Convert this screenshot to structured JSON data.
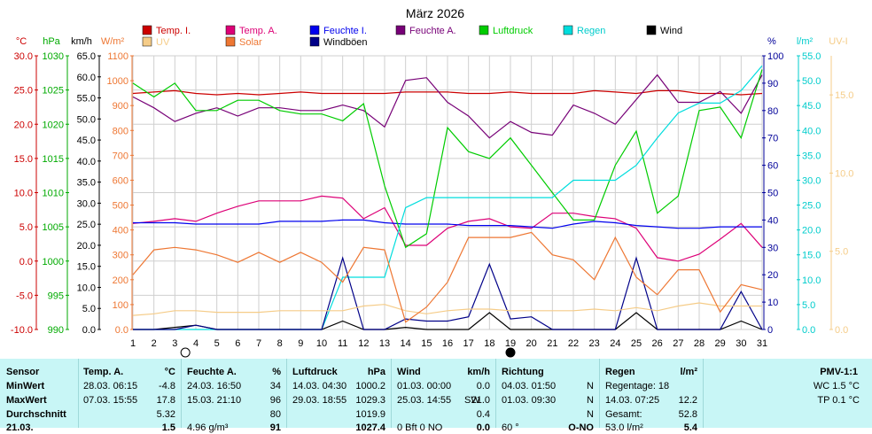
{
  "chart_data": {
    "type": "line",
    "title": "März 2026",
    "x": [
      1,
      2,
      3,
      4,
      5,
      6,
      7,
      8,
      9,
      10,
      11,
      12,
      13,
      14,
      15,
      16,
      17,
      18,
      19,
      20,
      21,
      22,
      23,
      24,
      25,
      26,
      27,
      28,
      29,
      30,
      31
    ],
    "xlim": [
      1,
      31
    ],
    "markers": [
      {
        "x": 3.5,
        "symbol": "full-moon"
      },
      {
        "x": 19,
        "symbol": "new-moon"
      }
    ],
    "axes": [
      {
        "id": "temp",
        "label": "°C",
        "color": "#cc0000",
        "ylim": [
          -10,
          30
        ],
        "ticks": [
          "-10.0",
          "-5.0",
          "0.0",
          "5.0",
          "10.0",
          "15.0",
          "20.0",
          "25.0",
          "30.0"
        ]
      },
      {
        "id": "press",
        "label": "hPa",
        "color": "#00aa00",
        "ylim": [
          990,
          1030
        ],
        "ticks": [
          "990",
          "995",
          "1000",
          "1005",
          "1010",
          "1015",
          "1020",
          "1025",
          "1030"
        ]
      },
      {
        "id": "wind",
        "label": "km/h",
        "color": "#000000",
        "ylim": [
          0,
          65
        ],
        "ticks": [
          "0.0",
          "5.0",
          "10.0",
          "15.0",
          "20.0",
          "25.0",
          "30.0",
          "35.0",
          "40.0",
          "45.0",
          "50.0",
          "55.0",
          "60.0",
          "65.0"
        ]
      },
      {
        "id": "solar",
        "label": "W/m²",
        "color": "#ee7733",
        "ylim": [
          0,
          1100
        ],
        "ticks": [
          "0.0",
          "100",
          "200",
          "300",
          "400",
          "500",
          "600",
          "700",
          "800",
          "900",
          "1000",
          "1100"
        ]
      },
      {
        "id": "hum",
        "label": "%",
        "color": "#000099",
        "ylim": [
          0,
          100
        ],
        "ticks": [
          "0",
          "10",
          "20",
          "30",
          "40",
          "50",
          "60",
          "70",
          "80",
          "90",
          "100"
        ]
      },
      {
        "id": "rain",
        "label": "l/m²",
        "color": "#00cccc",
        "ylim": [
          0,
          55
        ],
        "ticks": [
          "0.0",
          "5.0",
          "10.0",
          "15.0",
          "20.0",
          "25.0",
          "30.0",
          "35.0",
          "40.0",
          "45.0",
          "50.0",
          "55.0"
        ]
      },
      {
        "id": "uv",
        "label": "UV-I",
        "color": "#f5cc88",
        "ylim": [
          0,
          17.5
        ],
        "ticks": [
          "0.0",
          "5.0",
          "10.0",
          "15.0"
        ]
      }
    ],
    "series": [
      {
        "name": "Temp. I.",
        "color": "#cc0000",
        "axis": "temp",
        "values": [
          24.5,
          24.7,
          24.9,
          24.5,
          24.3,
          24.5,
          24.3,
          24.5,
          24.7,
          24.5,
          24.5,
          24.5,
          24.5,
          24.7,
          24.7,
          24.7,
          24.5,
          24.5,
          24.7,
          24.5,
          24.5,
          24.5,
          24.9,
          24.7,
          24.5,
          24.9,
          24.9,
          24.5,
          24.5,
          24.3,
          24.5
        ]
      },
      {
        "name": "Temp. A.",
        "color": "#dd0077",
        "axis": "temp",
        "values": [
          5.5,
          5.8,
          6.2,
          5.8,
          7.0,
          8.0,
          8.8,
          8.8,
          8.8,
          9.5,
          9.2,
          6.2,
          7.8,
          2.3,
          2.3,
          4.8,
          5.8,
          6.2,
          5.0,
          4.8,
          7.0,
          7.0,
          6.5,
          6.2,
          4.8,
          0.5,
          0.0,
          1.0,
          3.2,
          5.5,
          2.0
        ]
      },
      {
        "name": "Feuchte I.",
        "color": "#0000ee",
        "axis": "hum",
        "values": [
          39,
          39,
          39,
          38.5,
          38.5,
          38.5,
          38.5,
          39.5,
          39.5,
          39.5,
          40,
          40,
          39,
          38.5,
          38.5,
          38.5,
          38,
          38,
          38,
          37.5,
          37,
          38.5,
          39.5,
          39,
          38,
          37.5,
          37,
          37,
          37.5,
          37.5,
          37.5
        ]
      },
      {
        "name": "Feuchte A.",
        "color": "#770077",
        "axis": "hum",
        "values": [
          85,
          81,
          76,
          79,
          81,
          78,
          81,
          81,
          80,
          80,
          82,
          80,
          74,
          91,
          92,
          83,
          78,
          70,
          76,
          72,
          71,
          82,
          79,
          75,
          84,
          93,
          83,
          83,
          87,
          79,
          93
        ]
      },
      {
        "name": "Luftdruck",
        "color": "#00cc00",
        "axis": "press",
        "values": [
          1026,
          1024,
          1026,
          1022,
          1022,
          1023.5,
          1023.5,
          1022,
          1021.5,
          1021.5,
          1020.5,
          1023,
          1011,
          1002,
          1004,
          1019.5,
          1016,
          1015,
          1018,
          1014,
          1010,
          1006,
          1006,
          1014,
          1019,
          1007,
          1009.5,
          1022,
          1022.5,
          1018,
          1028
        ]
      },
      {
        "name": "Regen",
        "color": "#00dddd",
        "axis": "rain",
        "values": [
          0,
          0,
          0,
          0,
          0,
          0,
          0,
          0,
          0,
          0,
          10.5,
          10.5,
          10.5,
          24.5,
          26.5,
          26.5,
          26.5,
          26.5,
          26.5,
          26.5,
          26.5,
          30,
          30,
          30,
          33,
          38.5,
          43.5,
          45.5,
          45.5,
          48,
          53
        ]
      },
      {
        "name": "Wind",
        "color": "#000000",
        "axis": "wind",
        "values": [
          0,
          0,
          0.5,
          1,
          0,
          0,
          0,
          0,
          0,
          0,
          2,
          0,
          0,
          0.5,
          0,
          0,
          0,
          4,
          0,
          0,
          0,
          0,
          0,
          0,
          4,
          0,
          0,
          0,
          0,
          2,
          0
        ]
      },
      {
        "name": "Windböen",
        "color": "#000088",
        "axis": "wind",
        "values": [
          0,
          0,
          0,
          1,
          0,
          0,
          0,
          0,
          0,
          0,
          17,
          0,
          0,
          2.5,
          2,
          2,
          3,
          15.5,
          2.5,
          3,
          0,
          0,
          0,
          0,
          17,
          0,
          0,
          0,
          0,
          9,
          0
        ]
      },
      {
        "name": "UV",
        "color": "#f5cc88",
        "axis": "uv",
        "values": [
          0.9,
          1.0,
          1.2,
          1.2,
          1.1,
          1.1,
          1.1,
          1.2,
          1.2,
          1.2,
          1.2,
          1.5,
          1.6,
          1.2,
          1.0,
          1.2,
          1.3,
          1.3,
          1.2,
          1.2,
          1.2,
          1.2,
          1.3,
          1.2,
          1.4,
          1.2,
          1.5,
          1.7,
          1.5,
          1.5,
          1.5
        ]
      },
      {
        "name": "Solar",
        "color": "#ee7733",
        "axis": "solar",
        "values": [
          220,
          320,
          330,
          320,
          300,
          270,
          310,
          270,
          310,
          270,
          190,
          330,
          320,
          30,
          90,
          190,
          370,
          370,
          370,
          390,
          300,
          280,
          200,
          370,
          210,
          140,
          240,
          240,
          70,
          180,
          160
        ]
      }
    ],
    "legend": [
      {
        "name": "Temp. I.",
        "color": "#cc0000",
        "text_color": "#cc0000"
      },
      {
        "name": "Temp. A.",
        "color": "#dd0077",
        "text_color": "#dd0077"
      },
      {
        "name": "Feuchte I.",
        "color": "#0000ee",
        "text_color": "#0000ee"
      },
      {
        "name": "Feuchte A.",
        "color": "#770077",
        "text_color": "#770077"
      },
      {
        "name": "Luftdruck",
        "color": "#00cc00",
        "text_color": "#00cc00"
      },
      {
        "name": "Regen",
        "color": "#00dddd",
        "text_color": "#00cccc"
      },
      {
        "name": "Wind",
        "color": "#000000",
        "text_color": "#000000"
      },
      {
        "name": "UV",
        "color": "#f5cc88",
        "text_color": "#f5cc88"
      },
      {
        "name": "Solar",
        "color": "#ee7733",
        "text_color": "#ee7733"
      },
      {
        "name": "Windböen",
        "color": "#000088",
        "text_color": "#000000"
      }
    ],
    "grid": true,
    "legend_placement": "top"
  },
  "stats": {
    "sensor": {
      "header": "Sensor",
      "rows": [
        "MinWert",
        "MaxWert",
        "Durchschnitt",
        "21.03."
      ]
    },
    "temp": {
      "header": "Temp. A.",
      "unit": "°C",
      "rows": [
        [
          "28.03.  06:15",
          "-4.8"
        ],
        [
          "07.03.  15:55",
          "17.8"
        ],
        [
          "",
          "5.32"
        ],
        [
          "",
          "1.5"
        ]
      ]
    },
    "hum": {
      "header": "Feuchte A.",
      "unit": "%",
      "rows": [
        [
          "24.03.  16:50",
          "34"
        ],
        [
          "15.03.  21:10",
          "96"
        ],
        [
          "",
          "80"
        ],
        [
          "4.96 g/m³",
          "91"
        ]
      ]
    },
    "press": {
      "header": "Luftdruck",
      "unit": "hPa",
      "rows": [
        [
          "14.03.  04:30",
          "1000.2"
        ],
        [
          "29.03.  18:55",
          "1029.3"
        ],
        [
          "",
          "1019.9"
        ],
        [
          "",
          "1027.4"
        ]
      ]
    },
    "wind": {
      "header": "Wind",
      "unit": "km/h",
      "rows": [
        [
          "01.03.  00:00",
          "",
          "0.0"
        ],
        [
          "25.03.  14:55",
          "SW",
          "21.0"
        ],
        [
          "",
          "",
          "0.4"
        ],
        [
          "0 Bft  0 NO",
          "",
          "0.0"
        ]
      ]
    },
    "dir": {
      "header": "Richtung",
      "unit": "",
      "rows": [
        [
          "04.03.  01:50",
          "N"
        ],
        [
          "01.03.  09:30",
          "N"
        ],
        [
          "",
          "N"
        ],
        [
          "60 °",
          "O-NO"
        ]
      ]
    },
    "rain": {
      "header": "Regen",
      "unit": "l/m²",
      "rows": [
        [
          "Regentage: 18",
          ""
        ],
        [
          "14.03.  07:25",
          "12.2"
        ],
        [
          "Gesamt:",
          "52.8"
        ],
        [
          "53.0 l/m²",
          "5.4"
        ]
      ]
    },
    "pmv": {
      "header": "PMV-1:1",
      "rows": [
        "WC 1.5 °C",
        "TP 0.1 °C"
      ]
    }
  }
}
